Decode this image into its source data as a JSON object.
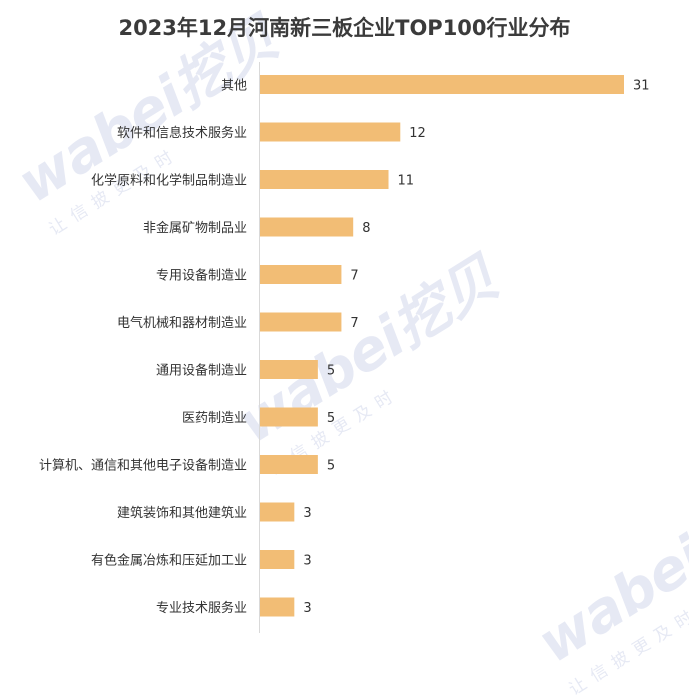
{
  "watermark": {
    "brand": "wabei挖贝",
    "slogan": "让信披更及时"
  },
  "chart_data": {
    "type": "bar",
    "orientation": "horizontal",
    "title": "2023年12月河南新三板企业TOP100行业分布",
    "categories": [
      "其他",
      "软件和信息技术服务业",
      "化学原料和化学制品制造业",
      "非金属矿物制品业",
      "专用设备制造业",
      "电气机械和器材制造业",
      "通用设备制造业",
      "医药制造业",
      "计算机、通信和其他电子设备制造业",
      "建筑装饰和其他建筑业",
      "有色金属冶炼和压延加工业",
      "专业技术服务业"
    ],
    "values": [
      31,
      12,
      11,
      8,
      7,
      7,
      5,
      5,
      5,
      3,
      3,
      3
    ],
    "xlim": [
      0,
      31
    ],
    "bar_color": "#f2bd75",
    "axis_color": "#d9d9d9",
    "grid": false,
    "legend": "none",
    "data_labels": true
  }
}
